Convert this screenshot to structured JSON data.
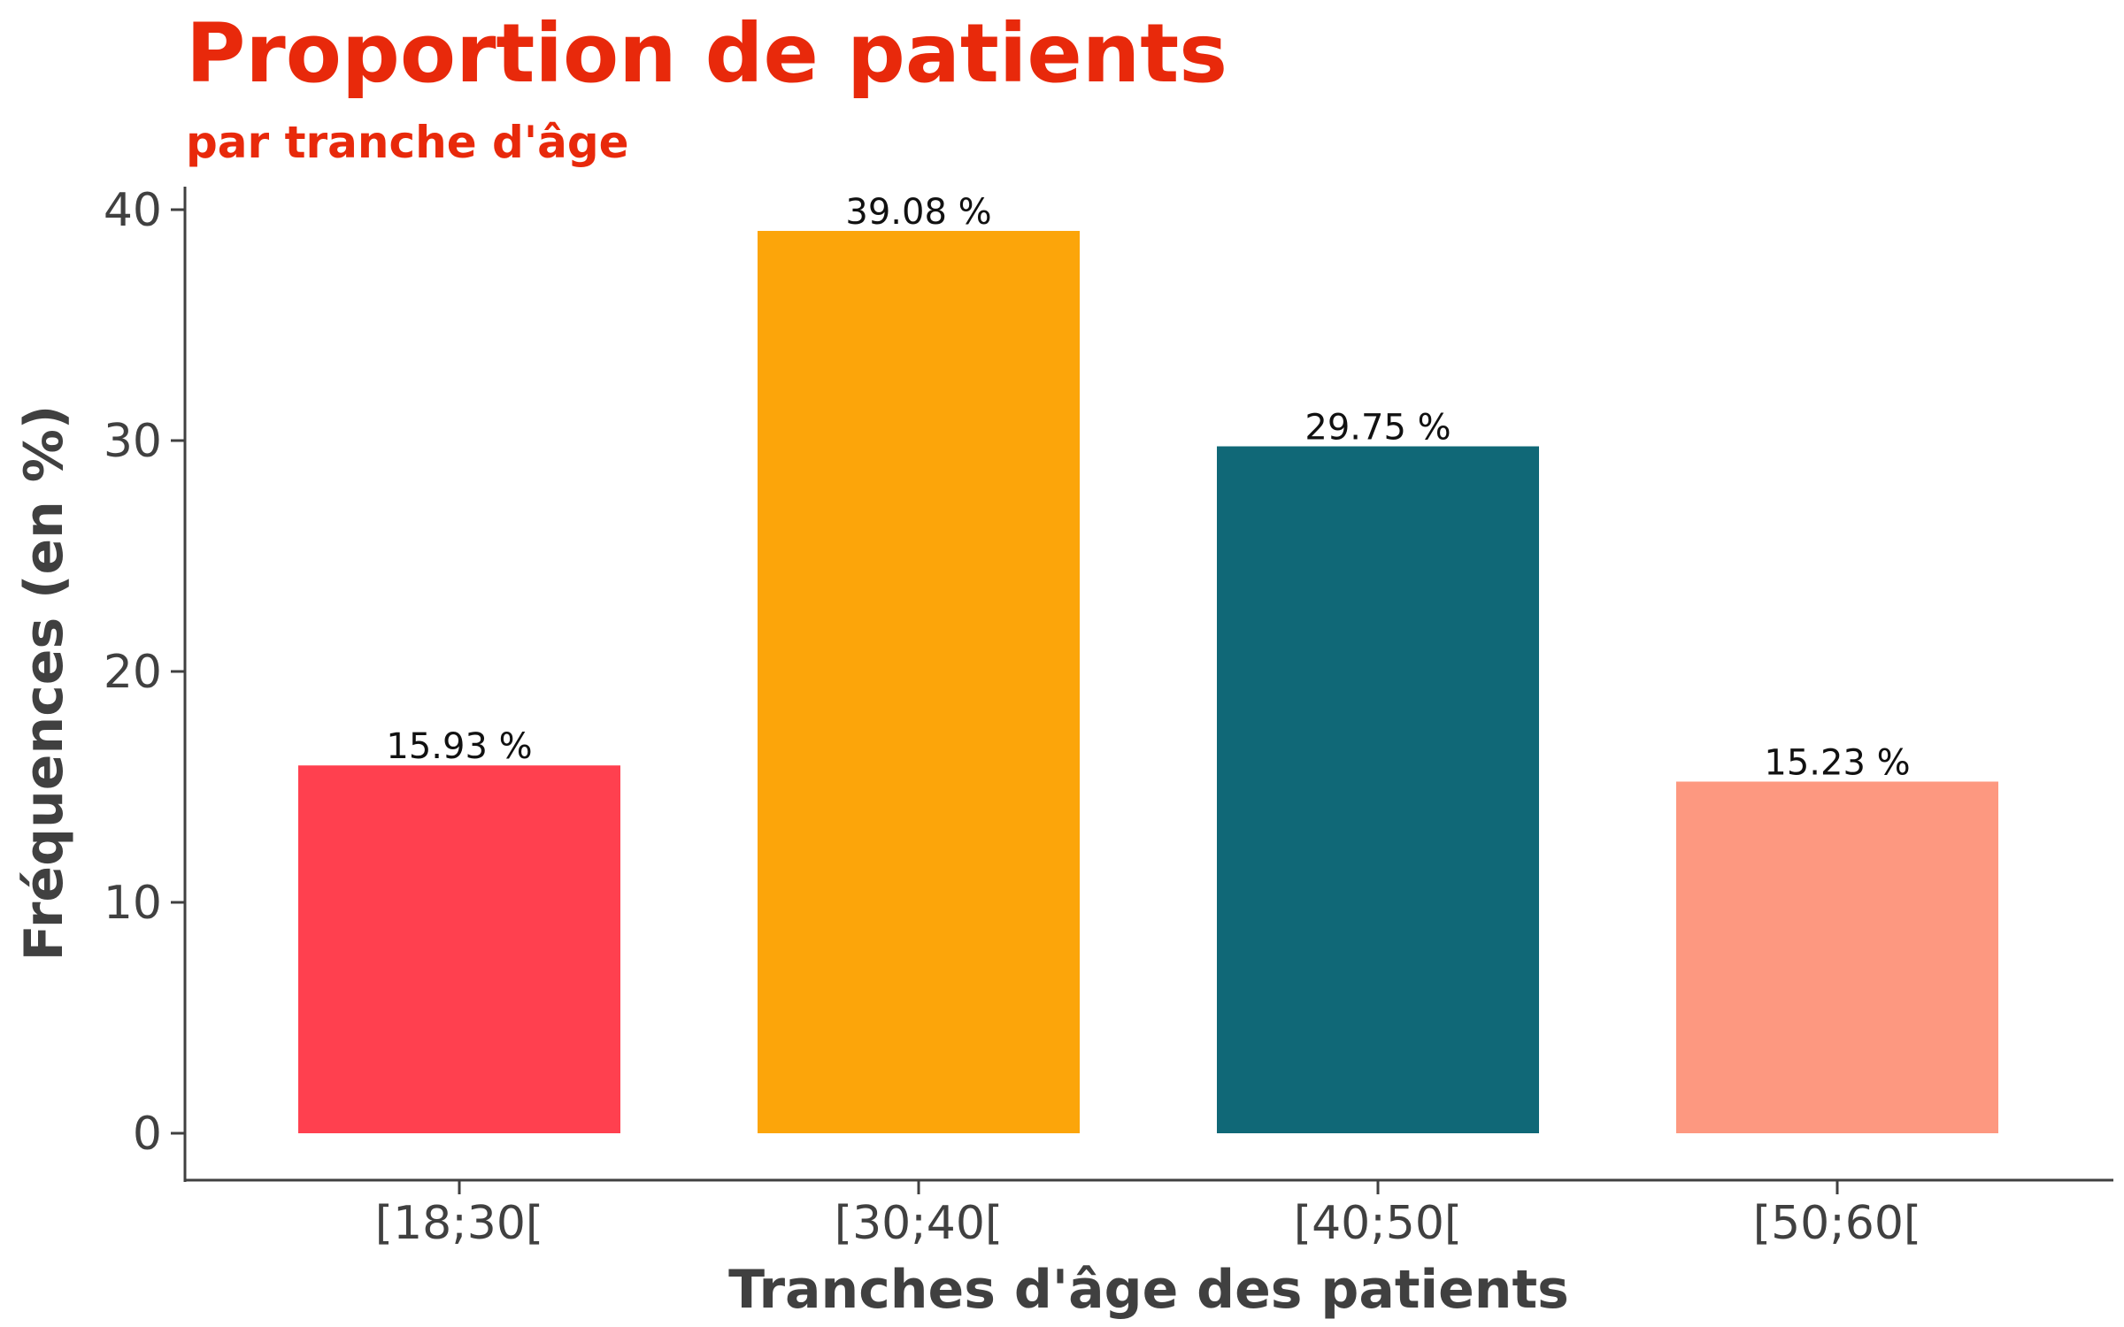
{
  "chart_data": {
    "type": "bar",
    "title": "Proportion de patients",
    "subtitle": "par tranche d'âge",
    "xlabel": "Tranches d'âge des patients",
    "ylabel": "Fréquences (en %)",
    "categories": [
      "[18;30[",
      "[30;40[",
      "[40;50[",
      "[50;60["
    ],
    "values": [
      15.93,
      39.08,
      29.75,
      15.23
    ],
    "value_labels": [
      "15.93 %",
      "39.08 %",
      "29.75 %",
      "15.23 %"
    ],
    "bar_colors": [
      "#FF404F",
      "#FCA50A",
      "#106877",
      "#FD9880"
    ],
    "ylim": [
      0,
      40
    ],
    "yticks": [
      0,
      10,
      20,
      30,
      40
    ],
    "ytick_labels": [
      "0",
      "10",
      "20",
      "30",
      "40"
    ],
    "grid": false,
    "legend": "none"
  },
  "colors": {
    "title": "#E8290B",
    "axis": "#404040",
    "text": "#404040"
  }
}
